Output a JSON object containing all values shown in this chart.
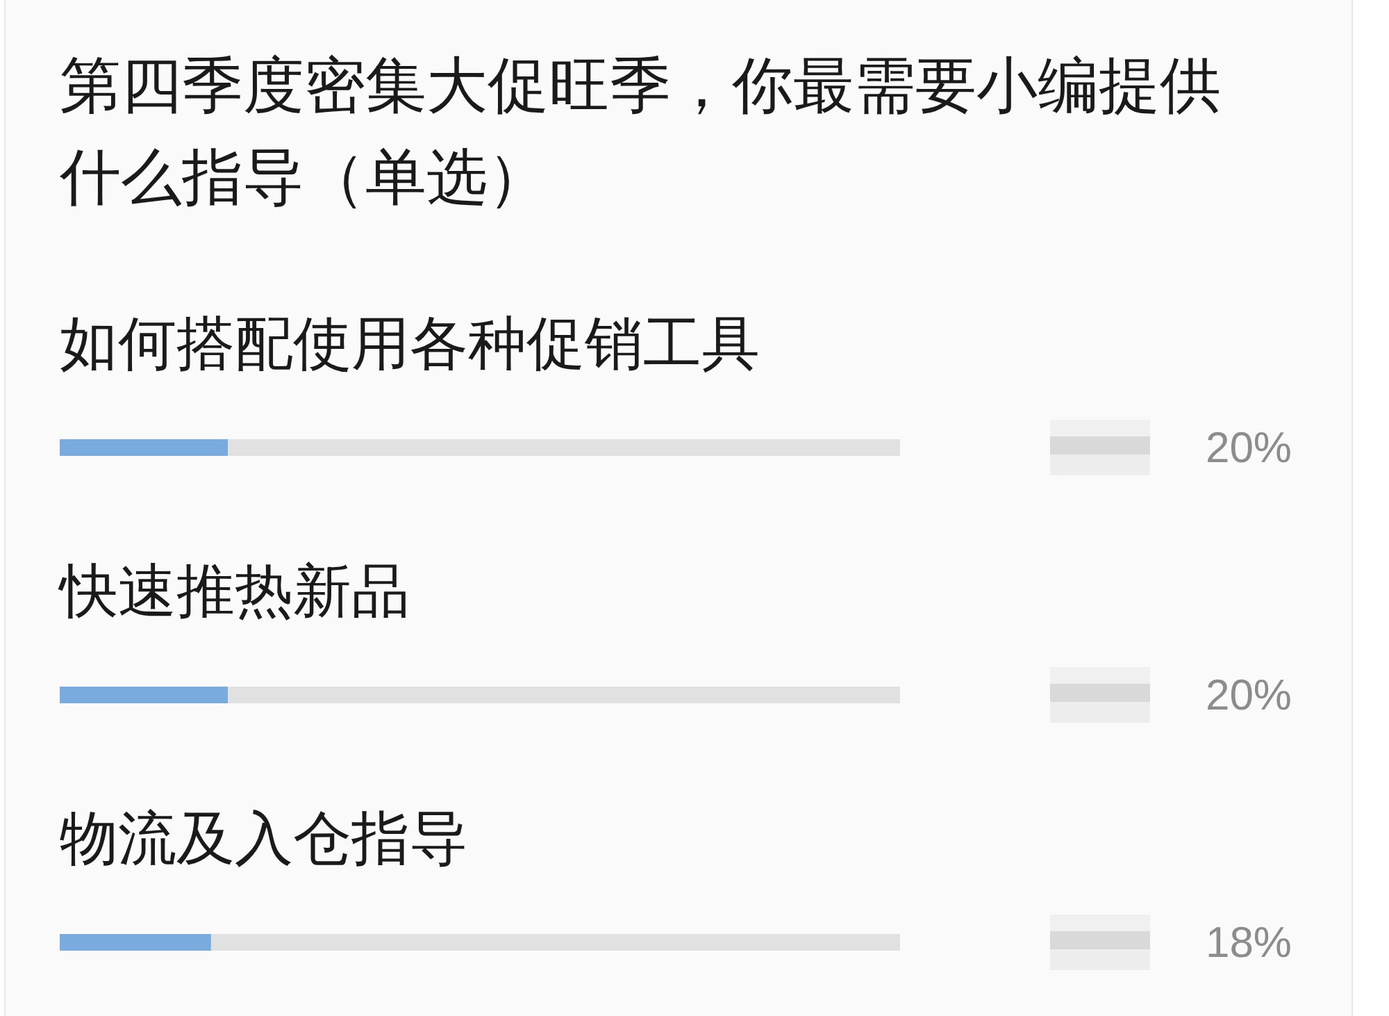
{
  "chart_data": {
    "type": "bar",
    "orientation": "horizontal",
    "title": "第四季度密集大促旺季，你最需要小编提供什么指导（单选）",
    "categories": [
      "如何搭配使用各种促销工具",
      "快速推热新品",
      "物流及入仓指导"
    ],
    "values": [
      20,
      20,
      18
    ],
    "value_labels": [
      "20%",
      "20%",
      "18%"
    ],
    "color": "#7aabdf",
    "xlim": [
      0,
      100
    ],
    "tick_labels": "y"
  }
}
